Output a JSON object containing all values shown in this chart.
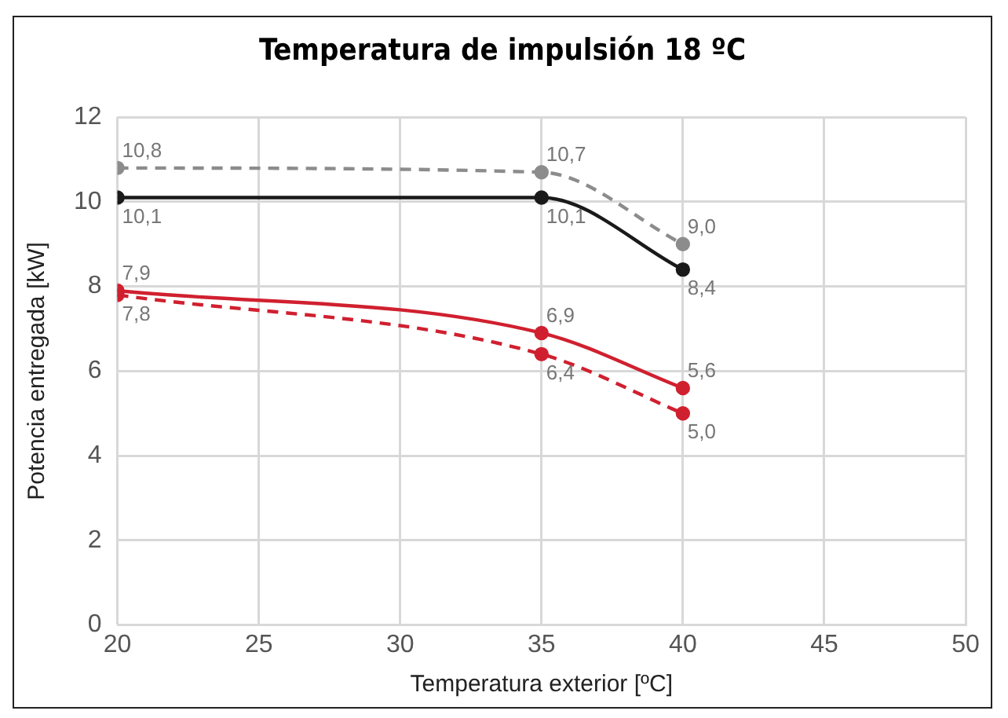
{
  "chart_data": {
    "type": "line",
    "title": "Temperatura de impulsión 18 ºC",
    "xlabel": "Temperatura exterior [ºC]",
    "ylabel": "Potencia entregada [kW]",
    "x": [
      20,
      35,
      40
    ],
    "xlim": [
      20,
      50
    ],
    "xticks": [
      20,
      25,
      30,
      35,
      40,
      45,
      50
    ],
    "ylim": [
      0,
      12
    ],
    "yticks": [
      0,
      2,
      4,
      6,
      8,
      10,
      12
    ],
    "grid": true,
    "marker": "circle",
    "series": [
      {
        "color": "#8c8c8c",
        "line_style": "dashed",
        "values": [
          10.8,
          10.7,
          9.0
        ],
        "value_labels": [
          "10,8",
          "10,7",
          "9,0"
        ]
      },
      {
        "color": "#1a1a1a",
        "line_style": "solid",
        "values": [
          10.1,
          10.1,
          8.4
        ],
        "value_labels": [
          "10,1",
          "10,1",
          "8,4"
        ]
      },
      {
        "color": "#d0202f",
        "line_style": "solid",
        "values": [
          7.9,
          6.9,
          5.6
        ],
        "value_labels": [
          "7,9",
          "6,9",
          "5,6"
        ]
      },
      {
        "color": "#d0202f",
        "line_style": "dashed",
        "values": [
          7.8,
          6.4,
          5.0
        ],
        "value_labels": [
          "7,8",
          "6,4",
          "5,0"
        ]
      }
    ]
  }
}
